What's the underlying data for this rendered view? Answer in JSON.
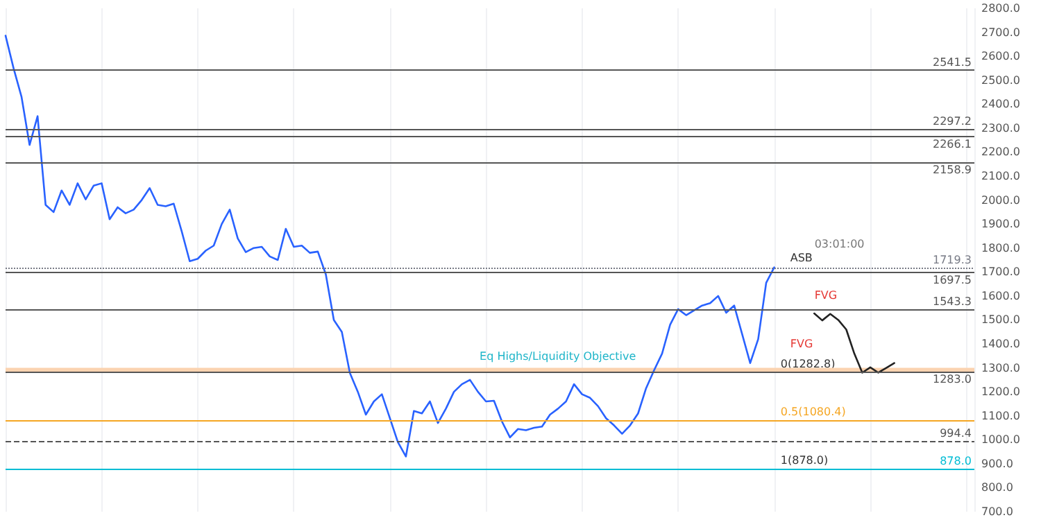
{
  "chart_data": {
    "type": "line",
    "categories": [
      null,
      null,
      null,
      null,
      null,
      null,
      null,
      null,
      null,
      null,
      null,
      null,
      null,
      null,
      null,
      null,
      null,
      null,
      null,
      null,
      null,
      null,
      null,
      null,
      null,
      null,
      null,
      null,
      null,
      null,
      null,
      null,
      null,
      null,
      null,
      null,
      null,
      null,
      null,
      null,
      null,
      null,
      null,
      null,
      null,
      null,
      null,
      null,
      null,
      null,
      null,
      null,
      null,
      null,
      null,
      null,
      null,
      null,
      null,
      null,
      null,
      null,
      null,
      null,
      null,
      null,
      null,
      null,
      null,
      null,
      null,
      null,
      null,
      null,
      null,
      null,
      null,
      null,
      null,
      null,
      null,
      null,
      null,
      null,
      null,
      null,
      null,
      null,
      null,
      null,
      null,
      null,
      null,
      null,
      null,
      null,
      null,
      null,
      null,
      null,
      null,
      null,
      null,
      null,
      null,
      null,
      null,
      null,
      null,
      null,
      null,
      null,
      null,
      null,
      null,
      null,
      null,
      null,
      null,
      null,
      null,
      null
    ],
    "series": [
      {
        "color": "#2962ff",
        "values": [
          2686,
          2550,
          2430,
          2230,
          2350,
          1980,
          1950,
          2040,
          1980,
          2070,
          2003,
          2060,
          2070,
          1920,
          1970,
          1945,
          1960,
          2000,
          2050,
          1980,
          1974,
          1985,
          1870,
          1745,
          1755,
          1789,
          1810,
          1900,
          1960,
          1840,
          1783,
          1800,
          1805,
          1765,
          1750,
          1880,
          1805,
          1810,
          1780,
          1785,
          1690,
          1500,
          1450,
          1279,
          1200,
          1105,
          1160,
          1190,
          1090,
          990,
          930,
          1120,
          1110,
          1160,
          1070,
          1130,
          1200,
          1232,
          1250,
          1200,
          1160,
          1163,
          1076,
          1010,
          1045,
          1040,
          1050,
          1055,
          1105,
          1130,
          1160,
          1232,
          1190,
          1175,
          1140,
          1090,
          1060,
          1025,
          1060,
          1110,
          1215,
          1290,
          1360,
          1480,
          1545,
          1520,
          1540,
          1560,
          1570,
          1600,
          1530,
          1560,
          1440,
          1320,
          1420,
          1655,
          1719,
          null,
          null,
          null,
          null,
          null,
          null,
          null,
          null,
          null,
          null,
          null,
          null,
          null,
          null,
          null,
          null,
          null,
          null,
          null,
          null,
          null,
          null,
          null,
          null,
          null
        ]
      },
      {
        "color": "#222222",
        "values": [
          null,
          null,
          null,
          null,
          null,
          null,
          null,
          null,
          null,
          null,
          null,
          null,
          null,
          null,
          null,
          null,
          null,
          null,
          null,
          null,
          null,
          null,
          null,
          null,
          null,
          null,
          null,
          null,
          null,
          null,
          null,
          null,
          null,
          null,
          null,
          null,
          null,
          null,
          null,
          null,
          null,
          null,
          null,
          null,
          null,
          null,
          null,
          null,
          null,
          null,
          null,
          null,
          null,
          null,
          null,
          null,
          null,
          null,
          null,
          null,
          null,
          null,
          null,
          null,
          null,
          null,
          null,
          null,
          null,
          null,
          null,
          null,
          null,
          null,
          null,
          null,
          null,
          null,
          null,
          null,
          null,
          null,
          null,
          null,
          null,
          null,
          null,
          null,
          null,
          null,
          null,
          null,
          null,
          null,
          null,
          null,
          null,
          null,
          null,
          null,
          null,
          1527,
          1498,
          1525,
          1500,
          1460,
          1360,
          1280,
          1302,
          1280,
          1300,
          1320,
          null,
          null,
          null,
          null,
          null,
          null,
          null,
          null,
          null,
          null
        ]
      }
    ],
    "ylim": [
      700,
      2800
    ],
    "yticks": [
      {
        "value": 700,
        "label": "700.0"
      },
      {
        "value": 800,
        "label": "800.0"
      },
      {
        "value": 900,
        "label": "900.0"
      },
      {
        "value": 1000,
        "label": "1000.0"
      },
      {
        "value": 1100,
        "label": "1100.0"
      },
      {
        "value": 1200,
        "label": "1200.0"
      },
      {
        "value": 1300,
        "label": "1300.0"
      },
      {
        "value": 1400,
        "label": "1400.0"
      },
      {
        "value": 1500,
        "label": "1500.0"
      },
      {
        "value": 1600,
        "label": "1600.0"
      },
      {
        "value": 1700,
        "label": "1700.0"
      },
      {
        "value": 1800,
        "label": "1800.0"
      },
      {
        "value": 1900,
        "label": "1900.0"
      },
      {
        "value": 2000,
        "label": "2000.0"
      },
      {
        "value": 2100,
        "label": "2100.0"
      },
      {
        "value": 2200,
        "label": "2200.0"
      },
      {
        "value": 2300,
        "label": "2300.0"
      },
      {
        "value": 2400,
        "label": "2400.0"
      },
      {
        "value": 2500,
        "label": "2500.0"
      },
      {
        "value": 2600,
        "label": "2600.0"
      },
      {
        "value": 2700,
        "label": "2700.0"
      },
      {
        "value": 2800,
        "label": "2800.0"
      }
    ],
    "ref_lines": [
      {
        "axis": "y",
        "value": 2541.5,
        "label": "2541.5",
        "color": "#555555"
      },
      {
        "axis": "y",
        "value": 2297.2,
        "label": "2297.2",
        "color": "#555555"
      },
      {
        "axis": "y",
        "value": 2266.1,
        "label": "2266.1",
        "color": "#555555"
      },
      {
        "axis": "y",
        "value": 2158.9,
        "label": "2158.9",
        "color": "#555555"
      },
      {
        "axis": "y",
        "value": 1719.3,
        "label": "1719.3",
        "color": "#787b86",
        "line_style": "dotted"
      },
      {
        "axis": "y",
        "value": 1697.5,
        "label": "1697.5",
        "color": "#555555"
      },
      {
        "axis": "y",
        "value": 1543.3,
        "label": "1543.3",
        "color": "#555555"
      },
      {
        "axis": "y",
        "value": 1283.0,
        "label": "1283.0",
        "color": "#555555"
      },
      {
        "axis": "y",
        "value": 1080.4,
        "color": "#f5a623"
      },
      {
        "axis": "y",
        "value": 994.4,
        "label": "994.4",
        "color": "#555555",
        "line_style": "dashed"
      },
      {
        "axis": "y",
        "value": 878.0,
        "label": "878.0",
        "color": "#00bcd4"
      }
    ],
    "bands": [
      {
        "axis": "y",
        "from": 1283,
        "to": 1300,
        "color": "#fbd3b0"
      }
    ],
    "annotations": [
      "Eq Highs/Liquidity Objective",
      "ASB",
      "FVG",
      "FVG",
      "03:01:00",
      {
        "text": "0(1282.8)",
        "y": 1282.8
      },
      "0.5(1080.4)",
      "1(878.0)"
    ],
    "grid": "x",
    "tick_labels": "y",
    "line_style": "solid"
  }
}
